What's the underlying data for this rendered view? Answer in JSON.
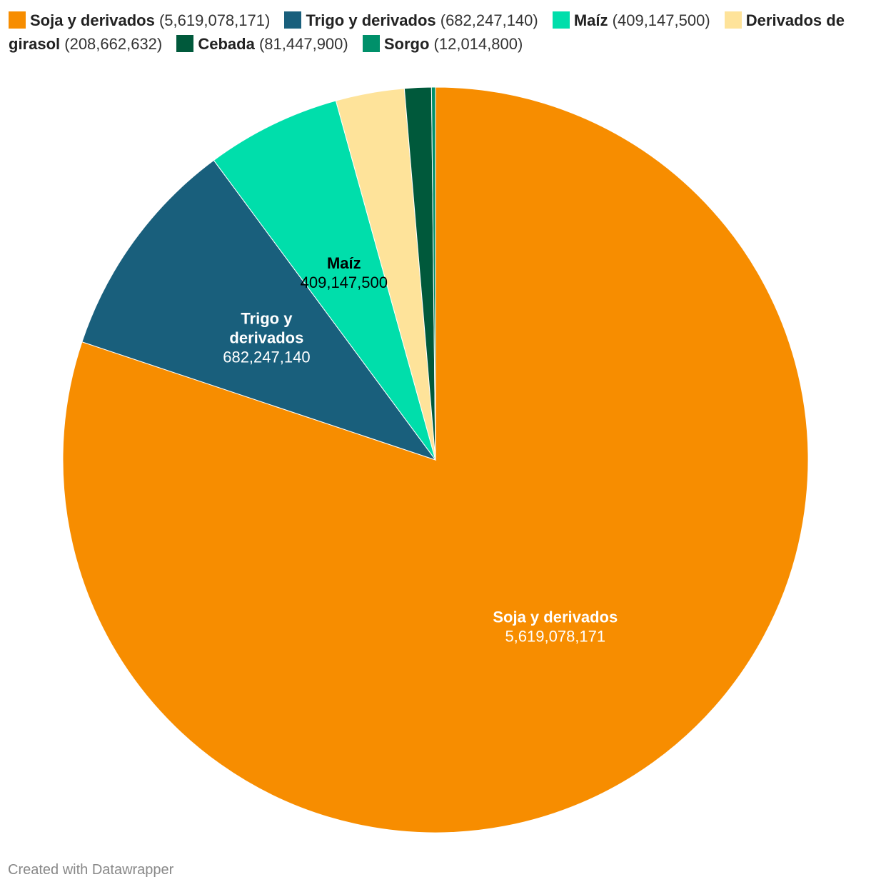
{
  "chart_data": {
    "type": "pie",
    "title": "",
    "legend_position": "top",
    "categories": [
      "Soja y derivados",
      "Trigo y derivados",
      "Maíz",
      "Derivados de girasol",
      "Cebada",
      "Sorgo"
    ],
    "values": [
      5619078171,
      682247140,
      409147500,
      208662632,
      81447900,
      12014800
    ],
    "value_labels": [
      "5,619,078,171",
      "682,247,140",
      "409,147,500",
      "208,662,632",
      "81,447,900",
      "12,014,800"
    ],
    "colors": [
      "#f78d00",
      "#195f7c",
      "#00deab",
      "#fee39a",
      "#00593b",
      "#00906a"
    ],
    "label_colors": [
      "#ffffff",
      "#ffffff",
      "#000000",
      "#000000",
      "#ffffff",
      "#ffffff"
    ],
    "labeled_slices": [
      0,
      1,
      2
    ]
  },
  "footer": {
    "credit": "Created with Datawrapper"
  }
}
